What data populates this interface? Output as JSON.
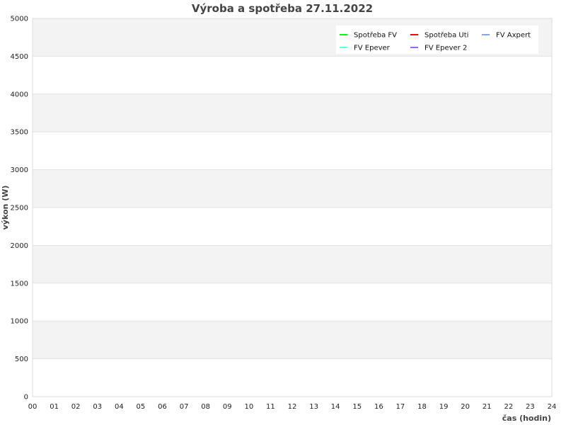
{
  "chart_data": {
    "type": "line",
    "title": "Výroba a spotřeba 27.11.2022",
    "xlabel": "čas (hodin)",
    "ylabel": "výkon (W)",
    "xlim": [
      0,
      24
    ],
    "ylim": [
      0,
      5000
    ],
    "x_ticks": [
      "00",
      "01",
      "02",
      "03",
      "04",
      "05",
      "06",
      "07",
      "08",
      "09",
      "10",
      "11",
      "12",
      "13",
      "14",
      "15",
      "16",
      "17",
      "18",
      "19",
      "20",
      "21",
      "22",
      "23",
      "24"
    ],
    "y_ticks": [
      "0",
      "500",
      "1000",
      "1500",
      "2000",
      "2500",
      "3000",
      "3500",
      "4000",
      "4500",
      "5000"
    ],
    "grid": true,
    "legend_placement": "top-right",
    "series": [
      {
        "name": "Spotřeba FV",
        "color": "#00ff00",
        "values": []
      },
      {
        "name": "Spotřeba Uti",
        "color": "#ff0000",
        "values": []
      },
      {
        "name": "FV Axpert",
        "color": "#88a8e0",
        "values": []
      },
      {
        "name": "FV Epever",
        "color": "#66ffee",
        "values": []
      },
      {
        "name": "FV Epever 2",
        "color": "#9966ee",
        "values": []
      }
    ]
  }
}
